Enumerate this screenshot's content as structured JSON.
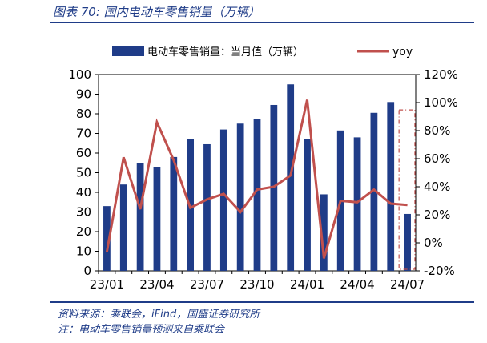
{
  "figure": {
    "title": "图表 70:  国内电动车零售销量（万辆）",
    "source": "资料来源：乘联会，iFind，国盛证券研究所",
    "note": "注：电动车零售销量预测来自乘联会"
  },
  "chart_data": {
    "type": "bar+line",
    "title": "国内电动车零售销量（万辆）",
    "categories": [
      "23/01",
      "23/02",
      "23/03",
      "23/04",
      "23/05",
      "23/06",
      "23/07",
      "23/08",
      "23/09",
      "23/10",
      "23/11",
      "23/12",
      "24/01",
      "24/02",
      "24/03",
      "24/04",
      "24/05",
      "24/06",
      "24/07"
    ],
    "x_tick_labels": [
      "23/01",
      "23/04",
      "23/07",
      "23/10",
      "24/01",
      "24/04",
      "24/07"
    ],
    "series": [
      {
        "name": "电动车零售销量：当月值（万辆）",
        "type": "bar",
        "axis": "left",
        "color": "#1f3c88",
        "values": [
          33,
          44,
          55,
          53,
          58,
          67,
          64.5,
          72,
          75,
          77.5,
          84.5,
          95,
          67,
          39,
          71.5,
          68,
          80.5,
          86,
          29
        ]
      },
      {
        "name": "yoy",
        "type": "line",
        "axis": "right",
        "color": "#c0504d",
        "values": [
          -6.5,
          61,
          24,
          86,
          59,
          25,
          31,
          35,
          22,
          38,
          40,
          48,
          102,
          -11,
          30,
          29,
          38,
          28,
          27
        ]
      }
    ],
    "y_left": {
      "min": 0,
      "max": 100,
      "ticks": [
        0,
        10,
        20,
        30,
        40,
        50,
        60,
        70,
        80,
        90,
        100
      ]
    },
    "y_right": {
      "min": -20,
      "max": 120,
      "ticks": [
        "-20%",
        "0%",
        "20%",
        "40%",
        "60%",
        "80%",
        "100%",
        "120%"
      ]
    },
    "legend": {
      "position": "top",
      "bar_label": "电动车零售销量：当月值（万辆）",
      "line_label": "yoy"
    },
    "annotations": [
      {
        "type": "dashed-box",
        "around": "24/07",
        "color": "#c0504d"
      }
    ]
  }
}
